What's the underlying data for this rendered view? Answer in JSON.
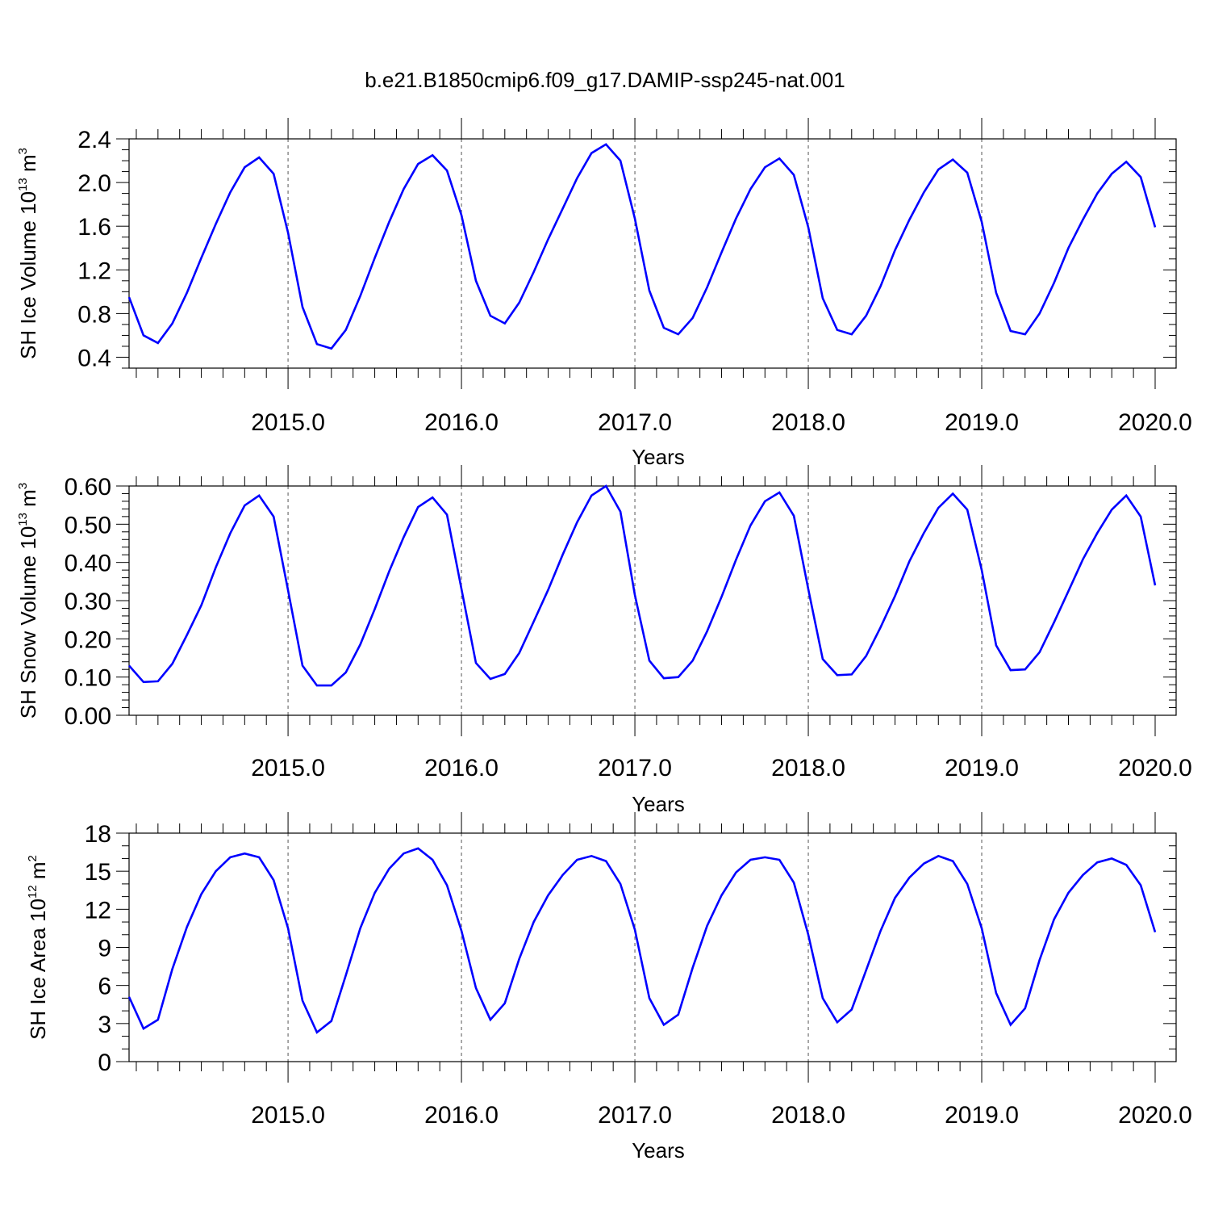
{
  "title": "b.e21.B1850cmip6.f09_g17.DAMIP-ssp245-nat.001",
  "colors": {
    "series": "#0000ff",
    "axis": "#000000",
    "grid": "#555555"
  },
  "chart_data": [
    {
      "type": "line",
      "ylabel": {
        "main": "SH Ice Volume 10",
        "sup": "13",
        "unit": " m",
        "unit_sup": "3"
      },
      "xlabel": "Years",
      "xlim": [
        2014.0833,
        2020.0
      ],
      "ylim": [
        0.3,
        2.4
      ],
      "yticks": [
        0.4,
        0.8,
        1.2,
        1.6,
        2.0,
        2.4
      ],
      "ytick_labels": [
        "0.4",
        "0.8",
        "1.2",
        "1.6",
        "2.0",
        "2.4"
      ],
      "ytick_minor": 0.1,
      "xticks": [
        2015,
        2016,
        2017,
        2018,
        2019,
        2020
      ],
      "xtick_labels": [
        "2015.0",
        "2016.0",
        "2017.0",
        "2018.0",
        "2019.0",
        "2020.0"
      ],
      "x_start": 2014.0833,
      "x_step": 0.0833333,
      "values": [
        0.95,
        0.6,
        0.53,
        0.71,
        0.99,
        1.31,
        1.62,
        1.91,
        2.14,
        2.23,
        2.08,
        1.54,
        0.86,
        0.52,
        0.48,
        0.65,
        0.96,
        1.31,
        1.64,
        1.94,
        2.17,
        2.25,
        2.11,
        1.7,
        1.1,
        0.78,
        0.71,
        0.9,
        1.18,
        1.48,
        1.76,
        2.04,
        2.27,
        2.35,
        2.2,
        1.67,
        1.01,
        0.67,
        0.61,
        0.76,
        1.04,
        1.36,
        1.67,
        1.94,
        2.14,
        2.22,
        2.07,
        1.59,
        0.94,
        0.65,
        0.61,
        0.78,
        1.05,
        1.38,
        1.66,
        1.91,
        2.12,
        2.21,
        2.09,
        1.64,
        0.99,
        0.64,
        0.61,
        0.8,
        1.08,
        1.4,
        1.66,
        1.9,
        2.08,
        2.19,
        2.05,
        1.59
      ]
    },
    {
      "type": "line",
      "ylabel": {
        "main": "SH Snow Volume 10",
        "sup": "13",
        "unit": " m",
        "unit_sup": "3"
      },
      "xlabel": "Years",
      "xlim": [
        2014.0833,
        2020.0
      ],
      "ylim": [
        0.0,
        0.6
      ],
      "yticks": [
        0.0,
        0.1,
        0.2,
        0.3,
        0.4,
        0.5,
        0.6
      ],
      "ytick_labels": [
        "0.00",
        "0.10",
        "0.20",
        "0.30",
        "0.40",
        "0.50",
        "0.60"
      ],
      "ytick_minor": 0.02,
      "xticks": [
        2015,
        2016,
        2017,
        2018,
        2019,
        2020
      ],
      "xtick_labels": [
        "2015.0",
        "2016.0",
        "2017.0",
        "2018.0",
        "2019.0",
        "2020.0"
      ],
      "x_start": 2014.0833,
      "x_step": 0.0833333,
      "values": [
        0.13,
        0.087,
        0.089,
        0.135,
        0.21,
        0.288,
        0.387,
        0.476,
        0.549,
        0.575,
        0.52,
        0.327,
        0.13,
        0.078,
        0.078,
        0.112,
        0.185,
        0.278,
        0.377,
        0.466,
        0.545,
        0.57,
        0.525,
        0.33,
        0.137,
        0.095,
        0.108,
        0.163,
        0.245,
        0.328,
        0.42,
        0.505,
        0.575,
        0.6,
        0.533,
        0.315,
        0.143,
        0.097,
        0.1,
        0.143,
        0.22,
        0.31,
        0.407,
        0.497,
        0.56,
        0.583,
        0.522,
        0.33,
        0.147,
        0.105,
        0.107,
        0.155,
        0.23,
        0.312,
        0.403,
        0.477,
        0.543,
        0.58,
        0.538,
        0.38,
        0.183,
        0.118,
        0.12,
        0.165,
        0.243,
        0.325,
        0.408,
        0.477,
        0.538,
        0.575,
        0.52,
        0.34
      ]
    },
    {
      "type": "line",
      "ylabel": {
        "main": "SH Ice Area 10",
        "sup": "12",
        "unit": " m",
        "unit_sup": "2"
      },
      "xlabel": "Years",
      "xlim": [
        2014.0833,
        2020.0
      ],
      "ylim": [
        0,
        18
      ],
      "yticks": [
        0,
        3,
        6,
        9,
        12,
        15,
        18
      ],
      "ytick_labels": [
        "0",
        "3",
        "6",
        "9",
        "12",
        "15",
        "18"
      ],
      "ytick_minor": 1,
      "xticks": [
        2015,
        2016,
        2017,
        2018,
        2019,
        2020
      ],
      "xtick_labels": [
        "2015.0",
        "2016.0",
        "2017.0",
        "2018.0",
        "2019.0",
        "2020.0"
      ],
      "x_start": 2014.0833,
      "x_step": 0.0833333,
      "values": [
        5.1,
        2.6,
        3.3,
        7.3,
        10.6,
        13.2,
        15.0,
        16.1,
        16.4,
        16.1,
        14.3,
        10.5,
        4.8,
        2.3,
        3.2,
        6.8,
        10.5,
        13.3,
        15.2,
        16.4,
        16.8,
        15.9,
        13.9,
        10.3,
        5.8,
        3.3,
        4.6,
        8.1,
        11.0,
        13.1,
        14.7,
        15.9,
        16.2,
        15.8,
        14.0,
        10.4,
        5.0,
        2.9,
        3.7,
        7.4,
        10.7,
        13.1,
        14.9,
        15.9,
        16.1,
        15.9,
        14.1,
        10.0,
        5.0,
        3.1,
        4.1,
        7.2,
        10.3,
        12.9,
        14.5,
        15.6,
        16.2,
        15.8,
        14.0,
        10.5,
        5.4,
        2.9,
        4.2,
        8.0,
        11.2,
        13.3,
        14.7,
        15.7,
        16.0,
        15.5,
        13.9,
        10.2
      ]
    }
  ]
}
